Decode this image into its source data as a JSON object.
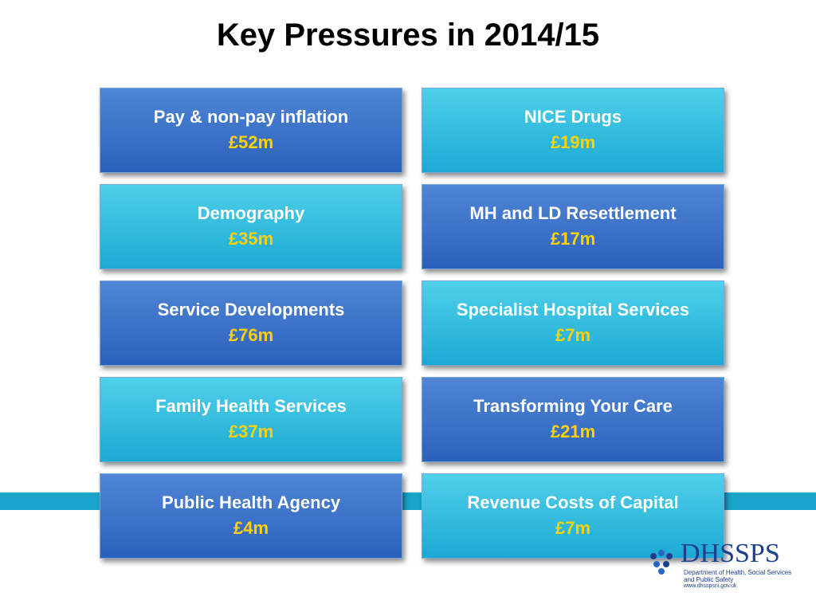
{
  "title": "Key Pressures in 2014/15",
  "boxes": [
    {
      "label": "Pay & non-pay inflation",
      "value": "£52m",
      "style": "blue"
    },
    {
      "label": "NICE Drugs",
      "value": "£19m",
      "style": "teal"
    },
    {
      "label": "Demography",
      "value": "£35m",
      "style": "teal"
    },
    {
      "label": "MH and LD Resettlement",
      "value": "£17m",
      "style": "blue"
    },
    {
      "label": "Service Developments",
      "value": "£76m",
      "style": "blue"
    },
    {
      "label": "Specialist Hospital Services",
      "value": "£7m",
      "style": "teal"
    },
    {
      "label": "Family Health Services",
      "value": "£37m",
      "style": "teal"
    },
    {
      "label": "Transforming Your Care",
      "value": "£21m",
      "style": "blue"
    },
    {
      "label": "Public Health Agency",
      "value": "£4m",
      "style": "blue"
    },
    {
      "label": "Revenue Costs of Capital",
      "value": "£7m",
      "style": "teal"
    }
  ],
  "logo": {
    "name": "DHSSPS",
    "subtitle": "Department of Health, Social Services and Public Safety",
    "url": "www.dhsspsni.gov.uk"
  },
  "colors": {
    "blue_box": "#2c61bb",
    "teal_box": "#1ca9d3",
    "value_text": "#ffd200",
    "band": "#1aa6cc"
  }
}
